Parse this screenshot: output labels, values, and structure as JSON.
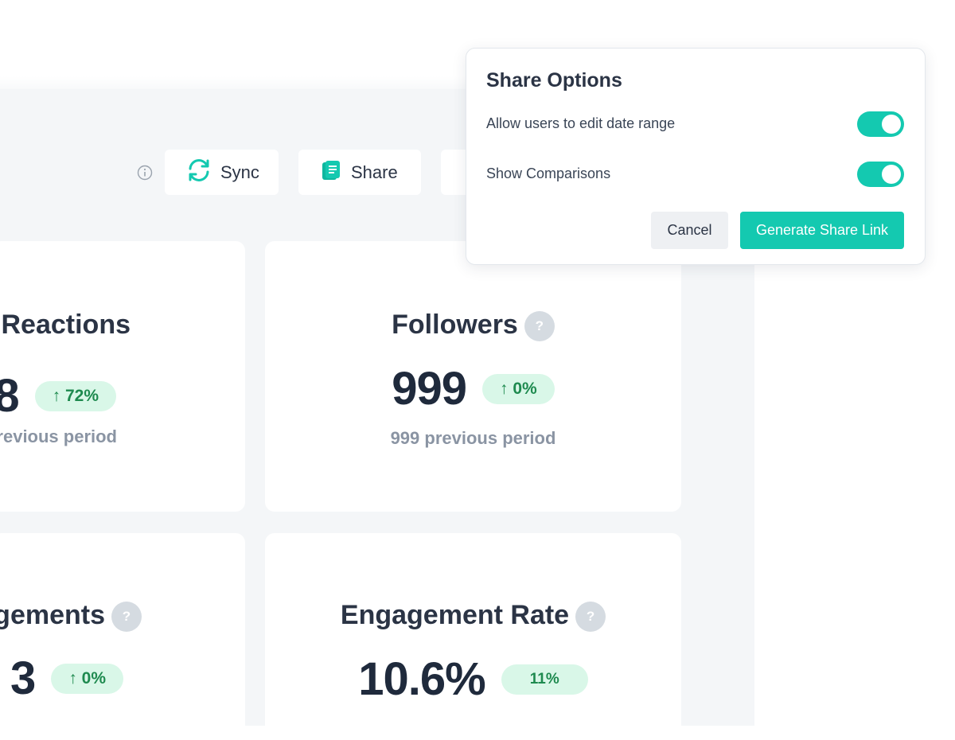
{
  "toolbar": {
    "sync_label": "Sync",
    "share_label": "Share",
    "icons": {
      "info": "info-icon",
      "sync": "sync-icon",
      "share": "document-icon"
    }
  },
  "cards": {
    "reactions": {
      "title": "Reactions",
      "value": "8",
      "change": "↑ 72%",
      "previous": "revious period"
    },
    "followers": {
      "title": "Followers",
      "help": "?",
      "value": "999",
      "change": "↑ 0%",
      "previous": "999 previous period"
    },
    "engagements": {
      "title": "gements",
      "help": "?",
      "value": "3",
      "change": "↑ 0%"
    },
    "engagement_rate": {
      "title": "Engagement Rate",
      "help": "?",
      "value": "10.6%",
      "change": "11%"
    }
  },
  "share_options": {
    "title": "Share Options",
    "options": [
      {
        "label": "Allow users to edit date range",
        "enabled": true
      },
      {
        "label": "Show Comparisons",
        "enabled": true
      }
    ],
    "cancel_label": "Cancel",
    "generate_label": "Generate Share Link"
  },
  "colors": {
    "accent": "#14c9b0",
    "panel_background": "#f4f6f8",
    "positive_pill": "#d9f7e8",
    "positive_text": "#1e8a4f",
    "help_badge": "#d5dbe1"
  }
}
